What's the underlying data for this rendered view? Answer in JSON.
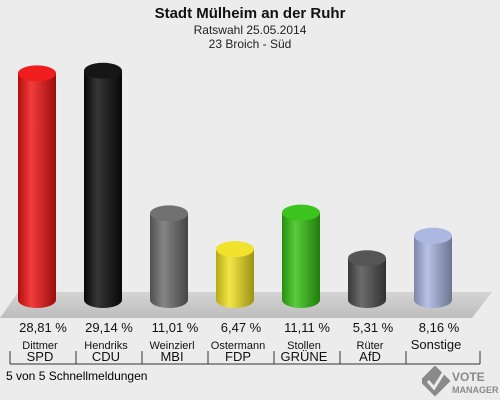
{
  "chart_data": {
    "type": "bar",
    "title": "Stadt Mülheim an der Ruhr",
    "subtitle1": "Ratswahl 25.05.2014",
    "subtitle2": "23 Broich - Süd",
    "categories": [
      "SPD",
      "CDU",
      "MBI",
      "FDP",
      "GRÜNE",
      "AfD",
      "Sonstige"
    ],
    "candidates": [
      "Dittmer",
      "Hendriks",
      "Weinzierl",
      "Ostermann",
      "Stollen",
      "Rüter",
      ""
    ],
    "values": [
      28.81,
      29.14,
      11.01,
      6.47,
      11.11,
      5.31,
      8.16
    ],
    "value_labels": [
      "28,81 %",
      "29,14 %",
      "11,01 %",
      "6,47 %",
      "11,11 %",
      "5,31 %",
      "8,16 %"
    ],
    "colors": [
      "#ee1111",
      "#0a0a0a",
      "#6a6a6a",
      "#f0e020",
      "#33c011",
      "#4c4c4c",
      "#a8b4e0"
    ],
    "ylim": [
      0,
      30
    ]
  },
  "footer": {
    "status": "5 von 5 Schnellmeldungen"
  },
  "logo": {
    "line1": "VOTE",
    "line2": "MANAGER"
  }
}
